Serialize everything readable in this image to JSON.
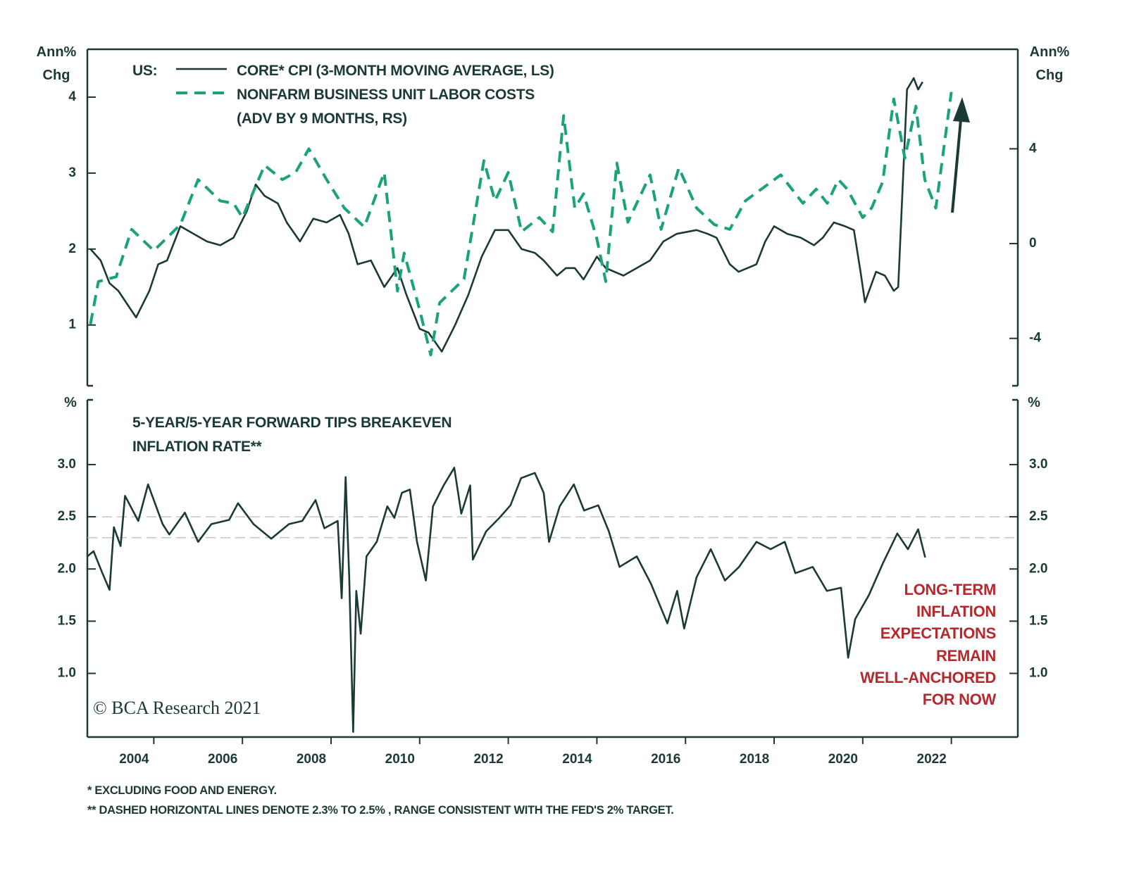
{
  "chart_data": [
    {
      "type": "line",
      "legend_title": "US:",
      "y_label": "Ann%\nChg",
      "y2_label": "Ann%\nChg",
      "xlim": [
        2002.5,
        2023.5
      ],
      "ylim": [
        0.2,
        4.63
      ],
      "yticks": [
        1,
        2,
        3,
        4
      ],
      "y2lim": [
        -6,
        8.2
      ],
      "y2ticks": [
        -4,
        0,
        4
      ],
      "series": [
        {
          "name": "CORE* CPI (3-MONTH MOVING AVERAGE, LS)",
          "color": "#1b3a36",
          "dash": false,
          "x": [
            2002.57,
            2002.8,
            2003.0,
            2003.2,
            2003.6,
            2003.9,
            2004.1,
            2004.3,
            2004.6,
            2004.9,
            2005.2,
            2005.5,
            2005.8,
            2006.1,
            2006.3,
            2006.5,
            2006.8,
            2007.0,
            2007.3,
            2007.6,
            2007.9,
            2008.2,
            2008.4,
            2008.6,
            2008.9,
            2009.2,
            2009.5,
            2009.7,
            2010.0,
            2010.2,
            2010.5,
            2010.8,
            2011.1,
            2011.4,
            2011.7,
            2012.0,
            2012.3,
            2012.6,
            2012.8,
            2013.1,
            2013.3,
            2013.5,
            2013.7,
            2014.0,
            2014.2,
            2014.6,
            2014.9,
            2015.2,
            2015.5,
            2015.8,
            2016.25,
            2016.5,
            2016.7,
            2017.0,
            2017.2,
            2017.6,
            2017.8,
            2018.0,
            2018.3,
            2018.6,
            2018.9,
            2019.1,
            2019.35,
            2019.6,
            2019.8,
            2019.95,
            2020.05,
            2020.3,
            2020.5,
            2020.7,
            2020.8,
            2020.9,
            2021.0,
            2021.15,
            2021.25,
            2021.35
          ],
          "values": [
            2.0,
            1.85,
            1.55,
            1.45,
            1.1,
            1.45,
            1.8,
            1.85,
            2.3,
            2.2,
            2.1,
            2.05,
            2.15,
            2.5,
            2.85,
            2.7,
            2.6,
            2.35,
            2.1,
            2.4,
            2.35,
            2.45,
            2.2,
            1.8,
            1.85,
            1.5,
            1.75,
            1.4,
            0.95,
            0.9,
            0.65,
            1.0,
            1.4,
            1.9,
            2.25,
            2.25,
            2.0,
            1.95,
            1.85,
            1.65,
            1.75,
            1.75,
            1.6,
            1.9,
            1.75,
            1.65,
            1.75,
            1.85,
            2.1,
            2.2,
            2.25,
            2.2,
            2.15,
            1.8,
            1.7,
            1.8,
            2.1,
            2.3,
            2.2,
            2.15,
            2.05,
            2.15,
            2.35,
            2.3,
            2.25,
            1.7,
            1.3,
            1.7,
            1.65,
            1.45,
            1.5,
            2.8,
            4.1,
            4.25,
            4.1,
            4.2
          ]
        },
        {
          "name": "NONFARM BUSINESS UNIT LABOR COSTS\n(ADV BY 9 MONTHS, RS)",
          "color": "#1aa37a",
          "dash": true,
          "axis": "y2",
          "x": [
            2002.57,
            2002.75,
            2003.15,
            2003.5,
            2004.0,
            2004.6,
            2005.0,
            2005.5,
            2005.8,
            2006.0,
            2006.5,
            2006.9,
            2007.2,
            2007.5,
            2007.9,
            2008.3,
            2008.75,
            2009.2,
            2009.5,
            2009.65,
            2010.0,
            2010.25,
            2010.45,
            2011.0,
            2011.45,
            2011.7,
            2012.0,
            2012.3,
            2012.7,
            2013.0,
            2013.25,
            2013.5,
            2013.7,
            2014.0,
            2014.2,
            2014.45,
            2014.7,
            2015.2,
            2015.45,
            2015.85,
            2016.25,
            2016.65,
            2017.0,
            2017.35,
            2018.15,
            2018.65,
            2018.95,
            2019.2,
            2019.45,
            2019.65,
            2020.0,
            2020.2,
            2020.45,
            2020.7,
            2020.95,
            2021.2,
            2021.4,
            2021.65,
            2022.0
          ],
          "values": [
            -3.4,
            -1.6,
            -1.4,
            0.6,
            -0.3,
            0.8,
            2.7,
            1.8,
            1.7,
            1.1,
            3.3,
            2.7,
            3.0,
            4.0,
            2.7,
            1.5,
            0.7,
            3.0,
            -2.0,
            -0.4,
            -2.8,
            -4.7,
            -2.5,
            -1.5,
            3.5,
            1.8,
            3.0,
            0.5,
            1.1,
            0.5,
            5.4,
            1.5,
            2.1,
            0.2,
            -1.6,
            3.4,
            0.9,
            2.9,
            0.6,
            3.2,
            1.5,
            0.8,
            0.6,
            1.8,
            2.9,
            1.7,
            2.3,
            1.7,
            2.7,
            2.3,
            1.1,
            1.5,
            2.6,
            6.1,
            3.6,
            5.8,
            2.7,
            1.5,
            6.4
          ]
        }
      ]
    },
    {
      "type": "line",
      "title": "5-YEAR/5-YEAR FORWARD TIPS BREAKEVEN\nINFLATION RATE**",
      "y_label": "%",
      "y2_label": "%",
      "xlim": [
        2002.5,
        2023.5
      ],
      "xticks": [
        2004,
        2006,
        2008,
        2010,
        2012,
        2014,
        2016,
        2018,
        2020,
        2022
      ],
      "ylim": [
        0.39,
        3.62
      ],
      "yticks": [
        {
          "value": 1,
          "label": "1.0"
        },
        1.5,
        {
          "value": 2,
          "label": "2.0"
        },
        2.5,
        {
          "value": 3,
          "label": "3.0"
        }
      ],
      "reference_lines": [
        2.3,
        2.5
      ],
      "annotation": "LONG-TERM\nINFLATION\nEXPECTATIONS\nREMAIN\nWELL-ANCHORED\nFOR NOW",
      "annotation_color": "#b5282e",
      "source": "© BCA Research 2021",
      "series": [
        {
          "name": "5-YEAR/5-YEAR FORWARD TIPS BREAKEVEN INFLATION RATE",
          "color": "#1b3a36",
          "dash": false,
          "x": [
            2002.5,
            2002.64,
            2002.85,
            2003.0,
            2003.1,
            2003.25,
            2003.35,
            2003.65,
            2003.87,
            2004.2,
            2004.35,
            2004.7,
            2005.0,
            2005.3,
            2005.7,
            2005.9,
            2006.25,
            2006.65,
            2007.05,
            2007.35,
            2007.65,
            2007.85,
            2008.15,
            2008.24,
            2008.33,
            2008.41,
            2008.5,
            2008.57,
            2008.67,
            2008.8,
            2009.03,
            2009.27,
            2009.43,
            2009.6,
            2009.78,
            2009.94,
            2010.14,
            2010.3,
            2010.54,
            2010.78,
            2010.94,
            2011.14,
            2011.2,
            2011.5,
            2011.8,
            2012.05,
            2012.29,
            2012.6,
            2012.8,
            2012.92,
            2013.16,
            2013.48,
            2013.71,
            2014.03,
            2014.27,
            2014.51,
            2014.9,
            2015.22,
            2015.59,
            2015.81,
            2015.97,
            2016.25,
            2016.57,
            2016.89,
            2017.21,
            2017.6,
            2017.92,
            2018.24,
            2018.48,
            2018.87,
            2019.19,
            2019.51,
            2019.67,
            2019.83,
            2020.14,
            2020.46,
            2020.78,
            2021.02,
            2021.25,
            2021.41
          ],
          "values": [
            2.12,
            2.17,
            1.95,
            1.8,
            2.4,
            2.22,
            2.7,
            2.46,
            2.81,
            2.43,
            2.33,
            2.54,
            2.26,
            2.43,
            2.47,
            2.63,
            2.43,
            2.29,
            2.43,
            2.46,
            2.66,
            2.39,
            2.46,
            1.72,
            2.88,
            1.92,
            0.44,
            1.79,
            1.38,
            2.12,
            2.26,
            2.6,
            2.49,
            2.73,
            2.76,
            2.26,
            1.89,
            2.6,
            2.8,
            2.97,
            2.53,
            2.8,
            2.09,
            2.36,
            2.49,
            2.61,
            2.87,
            2.92,
            2.73,
            2.26,
            2.6,
            2.81,
            2.56,
            2.61,
            2.36,
            2.02,
            2.12,
            1.86,
            1.48,
            1.79,
            1.43,
            1.92,
            2.19,
            1.89,
            2.02,
            2.26,
            2.19,
            2.26,
            1.96,
            2.02,
            1.79,
            1.82,
            1.15,
            1.52,
            1.75,
            2.06,
            2.34,
            2.19,
            2.38,
            2.11
          ]
        }
      ]
    }
  ],
  "footnotes": [
    "*  EXCLUDING FOOD AND ENERGY.",
    "**  DASHED HORIZONTAL LINES DENOTE 2.3% TO 2.5% , RANGE CONSISTENT WITH THE FED'S 2% TARGET."
  ]
}
